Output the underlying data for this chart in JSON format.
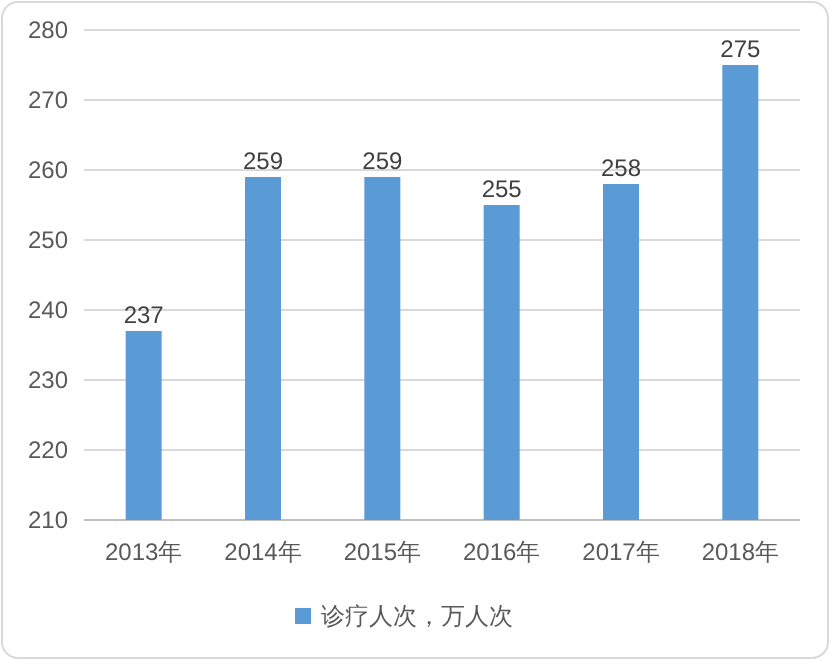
{
  "chart_data": {
    "type": "bar",
    "categories": [
      "2013年",
      "2014年",
      "2015年",
      "2016年",
      "2017年",
      "2018年"
    ],
    "series": [
      {
        "name": "诊疗人次，万人次",
        "color": "#5b9bd5",
        "values": [
          237,
          259,
          259,
          255,
          258,
          275
        ]
      }
    ],
    "ylim": [
      210,
      280
    ],
    "yticks": [
      210,
      220,
      230,
      240,
      250,
      260,
      270,
      280
    ],
    "grid": "y",
    "legend": "bottom",
    "data_labels": true
  }
}
